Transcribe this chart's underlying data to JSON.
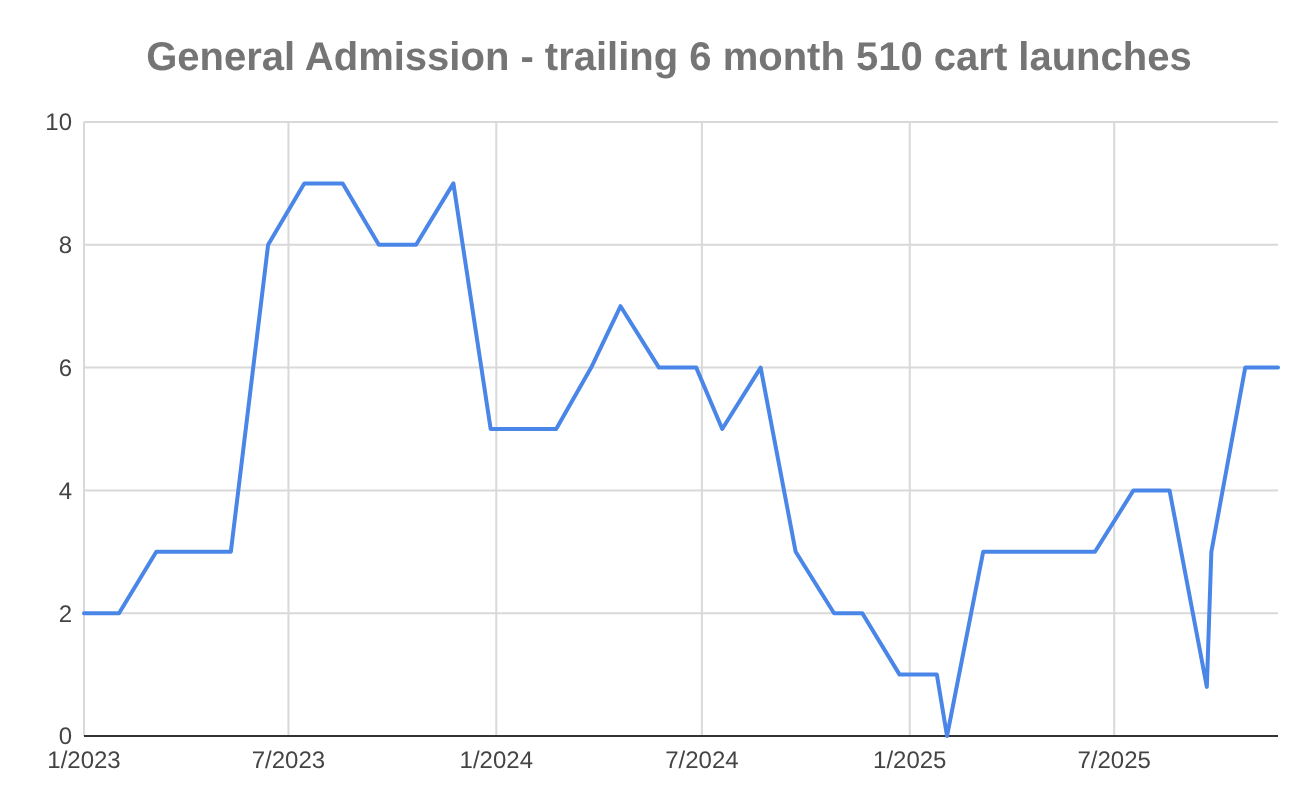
{
  "chart_data": {
    "type": "line",
    "title": "General Admission - trailing 6 month 510 cart launches",
    "x": [
      "2023-01-01",
      "2023-02-01",
      "2023-03-06",
      "2023-05-11",
      "2023-06-13",
      "2023-07-15",
      "2023-08-18",
      "2023-09-19",
      "2023-10-22",
      "2023-11-24",
      "2023-12-27",
      "2024-02-23",
      "2024-03-25",
      "2024-04-20",
      "2024-05-24",
      "2024-06-26",
      "2024-07-19",
      "2024-08-22",
      "2024-09-22",
      "2024-10-26",
      "2024-11-20",
      "2024-12-23",
      "2025-01-25",
      "2025-02-03",
      "2025-03-07",
      "2025-06-14",
      "2025-07-18",
      "2025-08-19",
      "2025-09-21",
      "2025-09-25",
      "2025-10-25",
      "2025-11-23"
    ],
    "series": [
      {
        "color": "#4a86e8",
        "values": [
          2,
          2,
          3,
          3,
          8,
          9,
          9,
          8,
          8,
          9,
          5,
          5,
          6,
          7,
          6,
          6,
          5,
          6,
          3,
          2,
          2,
          1,
          1,
          0,
          3,
          3,
          4,
          4,
          0.8,
          3,
          6,
          6
        ]
      }
    ],
    "xlim": [
      "2023-01-01",
      "2025-11-23"
    ],
    "xticks": [
      {
        "value": "2023-01-01",
        "label": "1/2023"
      },
      {
        "value": "2023-07-01",
        "label": "7/2023"
      },
      {
        "value": "2024-01-01",
        "label": "1/2024"
      },
      {
        "value": "2024-07-01",
        "label": "7/2024"
      },
      {
        "value": "2025-01-01",
        "label": "1/2025"
      },
      {
        "value": "2025-07-01",
        "label": "7/2025"
      }
    ],
    "ylim": [
      0,
      10
    ],
    "yticks": [
      0,
      2,
      4,
      6,
      8,
      10
    ],
    "grid": true,
    "marker": "none",
    "line_style": "solid"
  }
}
